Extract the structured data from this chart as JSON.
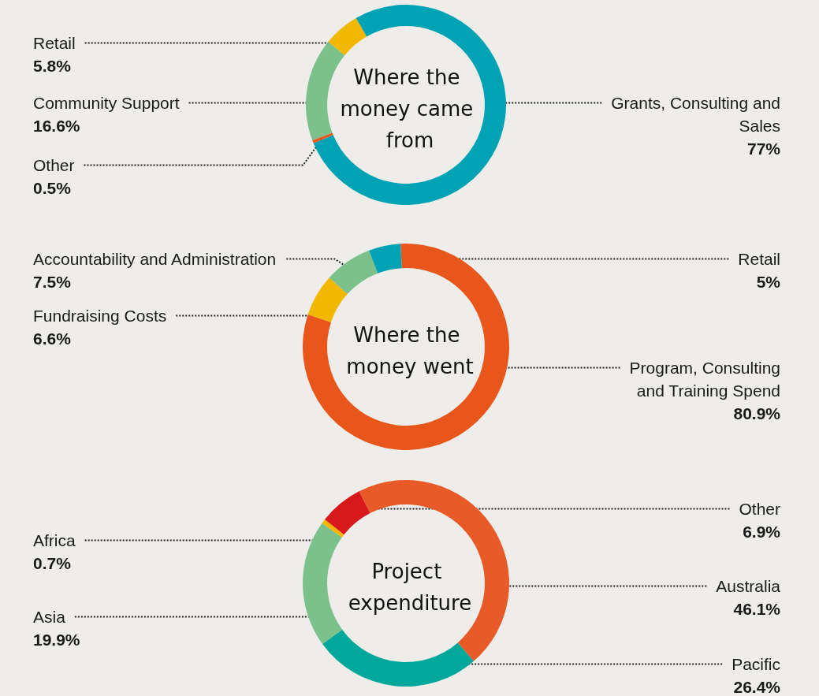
{
  "chart_data": [
    {
      "type": "donut",
      "title": "Where the money came from",
      "categories": [
        "Grants, Consulting and Sales",
        "Other",
        "Community Support",
        "Retail"
      ],
      "values": [
        77,
        0.5,
        16.6,
        5.8
      ],
      "value_labels": [
        "77%",
        "0.5%",
        "16.6%",
        "5.8%"
      ],
      "colors": [
        "#00a3b4",
        "#e8561c",
        "#7cc18c",
        "#f2b800"
      ]
    },
    {
      "type": "donut",
      "title": "Where the money went",
      "categories": [
        "Program, Consulting and Training Spend",
        "Fundraising Costs",
        "Accountability and Administration",
        "Retail"
      ],
      "values": [
        80.9,
        6.6,
        7.5,
        5
      ],
      "value_labels": [
        "80.9%",
        "6.6%",
        "7.5%",
        "5%"
      ],
      "colors": [
        "#e8561c",
        "#f2b800",
        "#7cc18c",
        "#00a3b4"
      ]
    },
    {
      "type": "donut",
      "title": "Project expenditure",
      "categories": [
        "Australia",
        "Pacific",
        "Asia",
        "Africa",
        "Other"
      ],
      "values": [
        46.1,
        26.4,
        19.9,
        0.7,
        6.9
      ],
      "value_labels": [
        "46.1%",
        "26.4%",
        "19.9%",
        "0.7%",
        "6.9%"
      ],
      "colors": [
        "#e85a27",
        "#00a89c",
        "#7cc18c",
        "#f2b800",
        "#d7191c"
      ]
    }
  ]
}
